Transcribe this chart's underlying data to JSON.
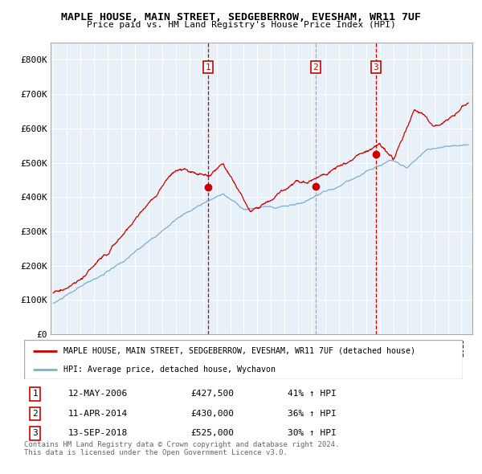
{
  "title": "MAPLE HOUSE, MAIN STREET, SEDGEBERROW, EVESHAM, WR11 7UF",
  "subtitle": "Price paid vs. HM Land Registry's House Price Index (HPI)",
  "ylim": [
    0,
    850000
  ],
  "yticks": [
    0,
    100000,
    200000,
    300000,
    400000,
    500000,
    600000,
    700000,
    800000
  ],
  "ytick_labels": [
    "£0",
    "£100K",
    "£200K",
    "£300K",
    "£400K",
    "£500K",
    "£600K",
    "£700K",
    "£800K"
  ],
  "red_line_color": "#cc0000",
  "blue_line_color": "#7ab0d4",
  "vline_color_solid": "#cc0000",
  "vline_color_dash": "#999999",
  "grid_color": "#cccccc",
  "chart_bg": "#e8f0f8",
  "legend_label_red": "MAPLE HOUSE, MAIN STREET, SEDGEBERROW, EVESHAM, WR11 7UF (detached house)",
  "legend_label_blue": "HPI: Average price, detached house, Wychavon",
  "transactions": [
    {
      "num": 1,
      "date": "12-MAY-2006",
      "price": "£427,500",
      "hpi": "41% ↑ HPI",
      "year": 2006.37,
      "vline_style": "solid_red"
    },
    {
      "num": 2,
      "date": "11-APR-2014",
      "price": "£430,000",
      "hpi": "36% ↑ HPI",
      "year": 2014.28,
      "vline_style": "dashed_gray"
    },
    {
      "num": 3,
      "date": "13-SEP-2018",
      "price": "£525,000",
      "hpi": "30% ↑ HPI",
      "year": 2018.7,
      "vline_style": "solid_red"
    }
  ],
  "transaction_prices": [
    427500,
    430000,
    525000
  ],
  "footer_line1": "Contains HM Land Registry data © Crown copyright and database right 2024.",
  "footer_line2": "This data is licensed under the Open Government Licence v3.0."
}
